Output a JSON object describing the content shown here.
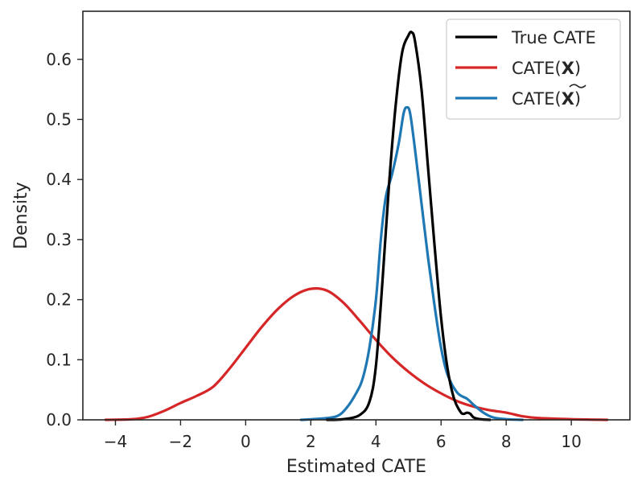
{
  "chart_data": {
    "type": "line",
    "subtype": "kde-density",
    "title": "",
    "xlabel": "Estimated CATE",
    "ylabel": "Density",
    "xlim": [
      -5.0,
      11.8
    ],
    "ylim": [
      0,
      0.68
    ],
    "xticks": [
      -4,
      -2,
      0,
      2,
      4,
      6,
      8,
      10
    ],
    "xtick_labels": [
      "−4",
      "−2",
      "0",
      "2",
      "4",
      "6",
      "8",
      "10"
    ],
    "yticks": [
      0.0,
      0.1,
      0.2,
      0.3,
      0.4,
      0.5,
      0.6
    ],
    "ytick_labels": [
      "0.0",
      "0.1",
      "0.2",
      "0.3",
      "0.4",
      "0.5",
      "0.6"
    ],
    "grid": false,
    "legend_position": "top-right",
    "series": [
      {
        "name": "True CATE",
        "legend_label": "True CATE",
        "color": "#000000",
        "points": [
          [
            2.5,
            0
          ],
          [
            3.0,
            0.001
          ],
          [
            3.5,
            0.008
          ],
          [
            3.8,
            0.03
          ],
          [
            4.0,
            0.09
          ],
          [
            4.2,
            0.23
          ],
          [
            4.4,
            0.39
          ],
          [
            4.6,
            0.52
          ],
          [
            4.8,
            0.61
          ],
          [
            5.0,
            0.64
          ],
          [
            5.1,
            0.645
          ],
          [
            5.2,
            0.63
          ],
          [
            5.4,
            0.55
          ],
          [
            5.6,
            0.42
          ],
          [
            5.8,
            0.29
          ],
          [
            6.0,
            0.17
          ],
          [
            6.2,
            0.085
          ],
          [
            6.4,
            0.035
          ],
          [
            6.6,
            0.013
          ],
          [
            6.7,
            0.01
          ],
          [
            6.8,
            0.012
          ],
          [
            6.9,
            0.01
          ],
          [
            7.0,
            0.004
          ],
          [
            7.2,
            0.001
          ],
          [
            7.5,
            0
          ]
        ]
      },
      {
        "name": "CATE(X)",
        "legend_prefix": "CATE(",
        "legend_symbol": "X",
        "legend_suffix": ")",
        "color": "#d62728",
        "points": [
          [
            -4.3,
            0
          ],
          [
            -3.5,
            0.001
          ],
          [
            -3.0,
            0.005
          ],
          [
            -2.5,
            0.015
          ],
          [
            -2.0,
            0.028
          ],
          [
            -1.5,
            0.04
          ],
          [
            -1.0,
            0.055
          ],
          [
            -0.5,
            0.085
          ],
          [
            0,
            0.12
          ],
          [
            0.5,
            0.155
          ],
          [
            1.0,
            0.185
          ],
          [
            1.5,
            0.207
          ],
          [
            2.0,
            0.218
          ],
          [
            2.5,
            0.215
          ],
          [
            3.0,
            0.195
          ],
          [
            3.5,
            0.165
          ],
          [
            4.0,
            0.133
          ],
          [
            4.5,
            0.104
          ],
          [
            5.0,
            0.08
          ],
          [
            5.5,
            0.06
          ],
          [
            6.0,
            0.044
          ],
          [
            6.5,
            0.031
          ],
          [
            7.0,
            0.022
          ],
          [
            7.5,
            0.016
          ],
          [
            8.0,
            0.012
          ],
          [
            8.5,
            0.006
          ],
          [
            9.0,
            0.003
          ],
          [
            10.0,
            0.001
          ],
          [
            11.1,
            0
          ]
        ]
      },
      {
        "name": "CATE(X̃)",
        "legend_prefix": "CATE(",
        "legend_symbol": "X",
        "legend_accent": "tilde",
        "legend_suffix": ")",
        "color": "#1f77b4",
        "points": [
          [
            1.7,
            0
          ],
          [
            2.3,
            0.002
          ],
          [
            2.8,
            0.006
          ],
          [
            3.1,
            0.02
          ],
          [
            3.4,
            0.045
          ],
          [
            3.6,
            0.07
          ],
          [
            3.8,
            0.12
          ],
          [
            4.0,
            0.2
          ],
          [
            4.15,
            0.3
          ],
          [
            4.3,
            0.37
          ],
          [
            4.5,
            0.41
          ],
          [
            4.7,
            0.46
          ],
          [
            4.85,
            0.51
          ],
          [
            4.95,
            0.52
          ],
          [
            5.05,
            0.51
          ],
          [
            5.2,
            0.45
          ],
          [
            5.4,
            0.36
          ],
          [
            5.6,
            0.27
          ],
          [
            5.8,
            0.19
          ],
          [
            6.0,
            0.12
          ],
          [
            6.2,
            0.075
          ],
          [
            6.5,
            0.045
          ],
          [
            6.8,
            0.035
          ],
          [
            7.0,
            0.025
          ],
          [
            7.3,
            0.012
          ],
          [
            7.6,
            0.004
          ],
          [
            8.0,
            0.001
          ],
          [
            8.5,
            0
          ]
        ]
      }
    ]
  }
}
